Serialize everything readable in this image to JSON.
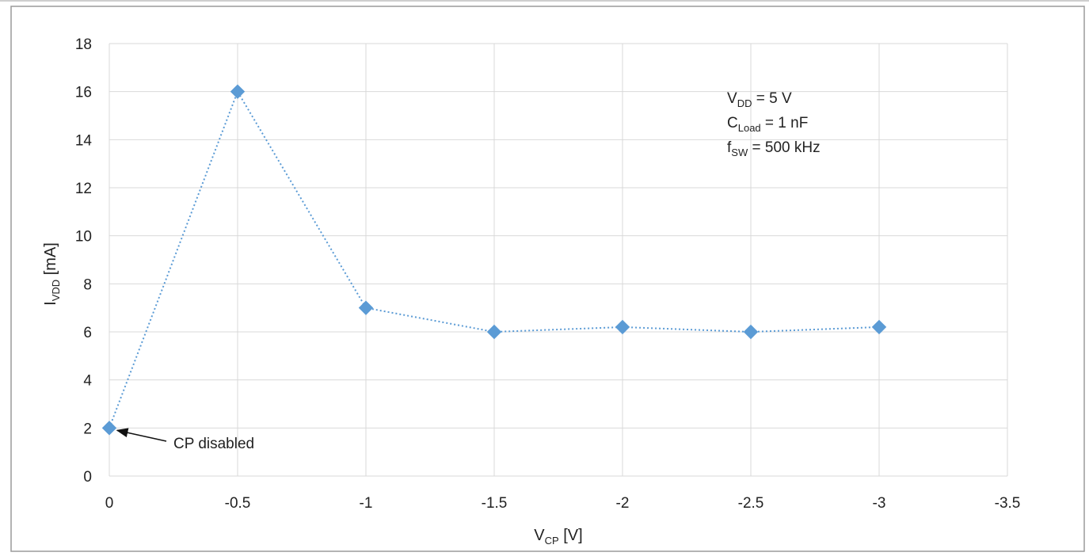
{
  "chart_data": {
    "type": "line",
    "style": "dotted line with diamond markers",
    "x": [
      0,
      -0.5,
      -1,
      -1.5,
      -2,
      -2.5,
      -3
    ],
    "series": [
      {
        "values": [
          2,
          16,
          7,
          6,
          6.2,
          6,
          6.2
        ],
        "color": "#5b9bd5"
      }
    ],
    "xlim": [
      0,
      -3.5
    ],
    "ylim": [
      0,
      18
    ],
    "x_ticks": [
      "0",
      "-0.5",
      "-1",
      "-1.5",
      "-2",
      "-2.5",
      "-3",
      "-3.5"
    ],
    "y_ticks": [
      "0",
      "2",
      "4",
      "6",
      "8",
      "10",
      "12",
      "14",
      "16",
      "18"
    ],
    "xlabel": {
      "main": "V",
      "sub": "CP",
      "unit": " [V]"
    },
    "ylabel": {
      "main": "I",
      "sub": "VDD",
      "unit": " [mA]"
    },
    "grid": true,
    "conditions": [
      {
        "main": "V",
        "sub": "DD",
        "rest": " = 5 V"
      },
      {
        "main": "C",
        "sub": "Load",
        "rest": " = 1 nF"
      },
      {
        "main": "f",
        "sub": "SW",
        "rest": " = 500 kHz"
      }
    ],
    "annotation": {
      "text": "CP disabled",
      "x": 0,
      "y": 2
    }
  }
}
